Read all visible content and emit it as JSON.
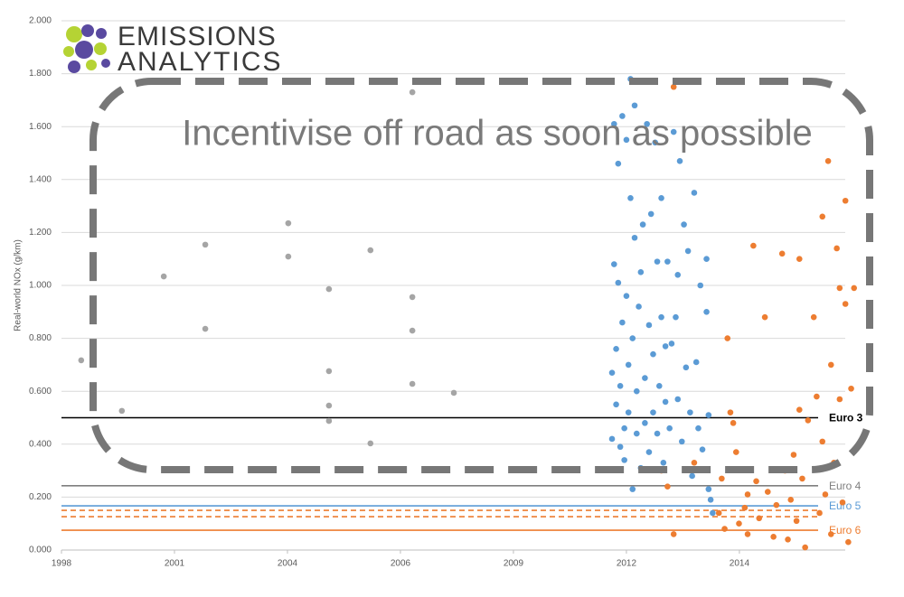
{
  "logo": [
    "EMISSIONS",
    "ANALYTICS"
  ],
  "chart_data": {
    "type": "scatter",
    "annotation": "Incentivise off road as soon as possible",
    "y_label": "Real-world NOx (g/km)",
    "xlim": [
      1998,
      2017.6
    ],
    "xticks": [
      {
        "value": 1998,
        "label": "1998"
      },
      {
        "value": 2000.75,
        "label": "2001"
      },
      {
        "value": 2003.5,
        "label": "2004"
      },
      {
        "value": 2006.25,
        "label": "2006"
      },
      {
        "value": 2009,
        "label": "2009"
      },
      {
        "value": 2011.75,
        "label": "2012"
      },
      {
        "value": 2014.5,
        "label": "2014"
      }
    ],
    "ylim": [
      0,
      2
    ],
    "yticks": [
      {
        "value": 0,
        "label": "0.000"
      },
      {
        "value": 0.2,
        "label": "0.200"
      },
      {
        "value": 0.4,
        "label": "0.400"
      },
      {
        "value": 0.6,
        "label": "0.600"
      },
      {
        "value": 0.8,
        "label": "0.800"
      },
      {
        "value": 1,
        "label": "1.000"
      },
      {
        "value": 1.2,
        "label": "1.200"
      },
      {
        "value": 1.4,
        "label": "1.400"
      },
      {
        "value": 1.6,
        "label": "1.600"
      },
      {
        "value": 1.8,
        "label": "1.800"
      },
      {
        "value": 2,
        "label": "2.000"
      }
    ],
    "grid": true,
    "series": [
      {
        "color": "#a5a5a5",
        "x": [
          1998.48,
          1999.47,
          2000.49,
          2001.5,
          2001.5,
          2003.52,
          2003.52,
          2004.51,
          2004.51,
          2004.51,
          2004.51,
          2005.52,
          2005.52,
          2006.54,
          2006.54,
          2006.54,
          2006.54,
          2007.55
        ],
        "values": [
          0.717,
          0.526,
          1.034,
          1.154,
          0.836,
          1.235,
          1.109,
          0.986,
          0.676,
          0.546,
          0.488,
          1.133,
          0.403,
          1.73,
          0.956,
          0.829,
          0.628,
          0.594
        ]
      },
      {
        "color": "#5b9bd5",
        "x": [
          2011.4,
          2011.4,
          2011.45,
          2011.45,
          2011.5,
          2011.5,
          2011.55,
          2011.55,
          2011.6,
          2011.6,
          2011.65,
          2011.65,
          2011.7,
          2011.7,
          2011.75,
          2011.75,
          2011.8,
          2011.8,
          2011.85,
          2011.85,
          2011.9,
          2011.9,
          2011.95,
          2011.95,
          2012.0,
          2012.0,
          2012.05,
          2012.1,
          2012.1,
          2012.15,
          2012.2,
          2012.2,
          2012.25,
          2012.3,
          2012.3,
          2012.35,
          2012.4,
          2012.4,
          2012.45,
          2012.5,
          2012.5,
          2012.55,
          2012.6,
          2012.6,
          2012.65,
          2012.7,
          2012.7,
          2012.75,
          2012.8,
          2012.85,
          2012.9,
          2012.95,
          2013.0,
          2013.0,
          2013.05,
          2013.1,
          2013.15,
          2013.2,
          2013.25,
          2013.3,
          2013.35,
          2013.4,
          2013.45,
          2013.5,
          2013.55,
          2013.6,
          2013.7,
          2013.7,
          2013.75,
          2013.75,
          2013.8,
          2013.85
        ],
        "values": [
          0.42,
          0.67,
          1.61,
          1.08,
          0.76,
          0.55,
          1.46,
          1.01,
          0.62,
          0.39,
          1.64,
          0.86,
          0.46,
          0.34,
          1.55,
          0.96,
          0.7,
          0.52,
          1.78,
          1.33,
          0.8,
          0.23,
          1.68,
          1.18,
          0.6,
          0.44,
          0.92,
          1.05,
          0.31,
          1.23,
          0.65,
          0.48,
          1.61,
          0.85,
          0.37,
          1.27,
          0.74,
          0.52,
          1.54,
          1.09,
          0.44,
          0.62,
          1.33,
          0.88,
          0.33,
          0.77,
          0.56,
          1.09,
          0.46,
          0.78,
          1.58,
          0.88,
          0.57,
          1.04,
          1.47,
          0.41,
          1.23,
          0.69,
          1.13,
          0.52,
          0.28,
          1.35,
          0.71,
          0.46,
          1.0,
          0.38,
          1.1,
          0.9,
          0.51,
          0.23,
          0.19,
          0.14
        ]
      },
      {
        "color": "#ed7d31",
        "x": [
          2012.6,
          2012.75,
          2012.9,
          2012.9,
          2013.4,
          2014.0,
          2014.07,
          2014.14,
          2014.21,
          2014.28,
          2014.35,
          2014.42,
          2014.49,
          2014.63,
          2014.7,
          2014.7,
          2014.84,
          2014.91,
          2014.98,
          2015.12,
          2015.19,
          2015.33,
          2015.4,
          2015.54,
          2015.61,
          2015.68,
          2015.75,
          2015.82,
          2015.89,
          2015.96,
          2015.96,
          2016.03,
          2016.1,
          2016.17,
          2016.31,
          2016.38,
          2016.45,
          2016.52,
          2016.52,
          2016.59,
          2016.66,
          2016.73,
          2016.73,
          2016.8,
          2016.87,
          2016.94,
          2016.94,
          2017.01,
          2017.08,
          2017.08,
          2017.15,
          2017.22,
          2017.29
        ],
        "values": [
          0.3,
          0.24,
          1.75,
          0.06,
          0.33,
          0.14,
          0.27,
          0.08,
          0.8,
          0.52,
          0.48,
          0.37,
          0.1,
          0.16,
          0.21,
          0.06,
          1.15,
          0.26,
          0.12,
          0.88,
          0.22,
          0.05,
          0.17,
          1.12,
          0.3,
          0.04,
          0.19,
          0.36,
          0.11,
          1.1,
          0.53,
          0.27,
          0.01,
          0.49,
          0.88,
          0.58,
          0.14,
          1.26,
          0.41,
          0.21,
          1.47,
          0.7,
          0.06,
          0.33,
          1.14,
          0.99,
          0.57,
          0.18,
          1.32,
          0.93,
          0.03,
          0.61,
          0.99
        ]
      }
    ],
    "reference_lines": [
      {
        "name": "Euro 3",
        "value": 0.5,
        "color": "#000000"
      },
      {
        "name": "Euro 4",
        "value": 0.243,
        "color": "#7f7f7f"
      },
      {
        "name": "Euro 5",
        "value": 0.167,
        "color": "#5b9bd5"
      },
      {
        "value": 0.15,
        "color": "#ed7d31",
        "dashed": true
      },
      {
        "value": 0.126,
        "color": "#ed7d31",
        "dashed": true
      },
      {
        "name": "Euro 6",
        "value": 0.075,
        "color": "#ed7d31"
      }
    ]
  }
}
